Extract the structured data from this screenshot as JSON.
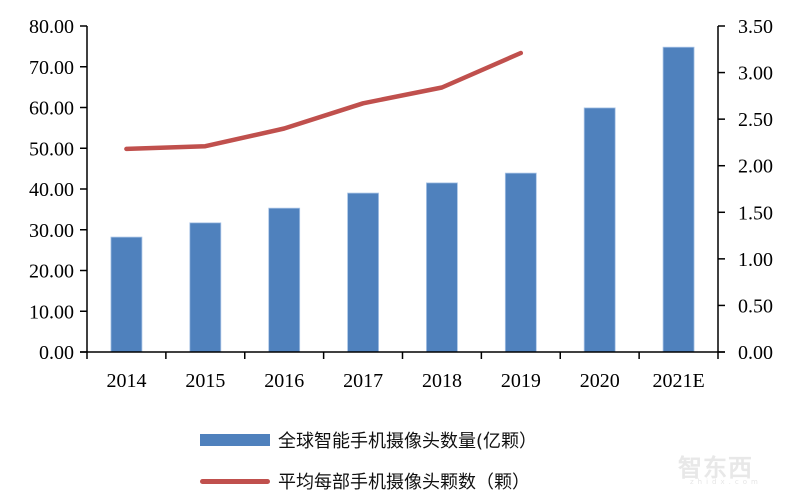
{
  "chart_data": {
    "type": "bar",
    "title": "",
    "categories": [
      "2014",
      "2015",
      "2016",
      "2017",
      "2018",
      "2019",
      "2020",
      "2021E"
    ],
    "series": [
      {
        "name": "全球智能手机摄像头数量(亿颗)",
        "type": "bar",
        "axis": "left",
        "color": "#4F81BD",
        "values": [
          28.2,
          31.7,
          35.3,
          39.0,
          41.5,
          43.9,
          59.9,
          74.8
        ]
      },
      {
        "name": "平均每部手机摄像头颗数（颗）",
        "type": "line",
        "axis": "right",
        "color": "#C0504D",
        "values": [
          2.18,
          2.21,
          2.4,
          2.67,
          2.84,
          3.21,
          null,
          null
        ]
      }
    ],
    "left_axis": {
      "ylim": [
        0,
        80
      ],
      "ticks": [
        "0.00",
        "10.00",
        "20.00",
        "30.00",
        "40.00",
        "50.00",
        "60.00",
        "70.00",
        "80.00"
      ]
    },
    "right_axis": {
      "ylim": [
        0,
        3.5
      ],
      "ticks": [
        "0.00",
        "0.50",
        "1.00",
        "1.50",
        "2.00",
        "2.50",
        "3.00",
        "3.50"
      ]
    },
    "xlabel": "",
    "ylabel": "",
    "grid": false,
    "legend_position": "bottom"
  },
  "legend": {
    "bar_label": "全球智能手机摄像头数量(亿颗）",
    "line_label": "平均每部手机摄像头颗数（颗）"
  },
  "watermark": {
    "text": "智东西",
    "sub": "zhidx.com"
  }
}
